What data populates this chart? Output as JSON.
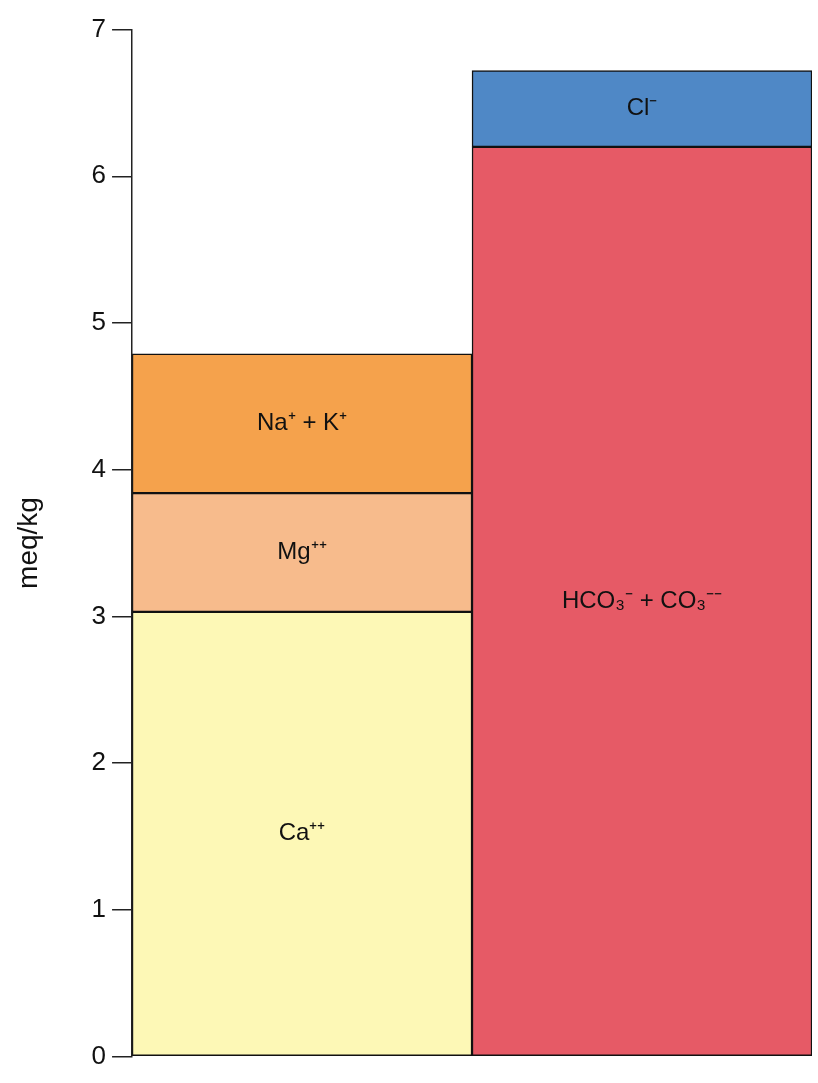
{
  "chart_data": {
    "type": "bar",
    "stacked": true,
    "ylabel": "meq/kg",
    "categories": [
      null,
      null
    ],
    "series": [
      {
        "name": "Ca⁺⁺",
        "color": "#fdf8b6",
        "values": [
          3.03,
          null
        ]
      },
      {
        "name": "Mg⁺⁺",
        "color": "#f7bb8c",
        "values": [
          0.81,
          null
        ]
      },
      {
        "name": "Na⁺ + K⁺",
        "color": "#f5a24c",
        "values": [
          0.95,
          null
        ]
      },
      {
        "name": "HCO₃⁻ + CO₃⁻⁻",
        "color": "#e65a66",
        "values": [
          null,
          6.2
        ]
      },
      {
        "name": "Cl⁻",
        "color": "#4f88c6",
        "values": [
          null,
          0.52
        ]
      }
    ],
    "ylim": [
      0,
      7
    ],
    "yticks": [
      0,
      1,
      2,
      3,
      4,
      5,
      6,
      7
    ],
    "grid": false,
    "legend": false
  }
}
